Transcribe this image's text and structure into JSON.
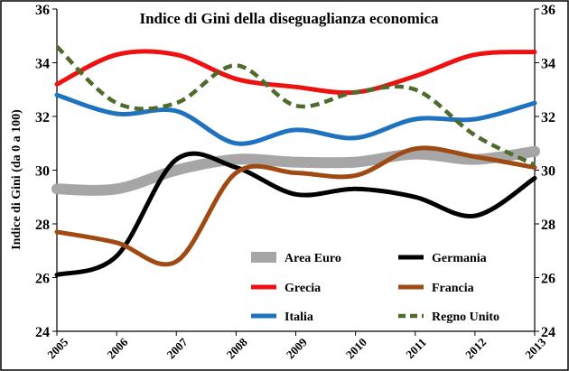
{
  "chart_data": {
    "type": "line",
    "title": "Indice di Gini della diseguaglianza economica",
    "xlabel": "",
    "ylabel": "Indice di Gini (da 0 a 100)",
    "x": [
      "2005",
      "2006",
      "2007",
      "2008",
      "2009",
      "2010",
      "2011",
      "2012",
      "2013"
    ],
    "ylim": [
      24,
      36
    ],
    "yticks": [
      "24",
      "26",
      "28",
      "30",
      "32",
      "34",
      "36"
    ],
    "grid": false,
    "secondary_axis": true,
    "legend_position": "bottom-right",
    "series": [
      {
        "name": "Area Euro",
        "color": "#a6a6a6",
        "style": "solid-thick",
        "values": [
          29.3,
          29.3,
          30.0,
          30.4,
          30.3,
          30.3,
          30.6,
          30.4,
          30.7
        ]
      },
      {
        "name": "Germania",
        "color": "#000000",
        "style": "solid",
        "values": [
          26.1,
          26.8,
          30.4,
          30.1,
          29.1,
          29.3,
          29.0,
          28.3,
          29.7
        ]
      },
      {
        "name": "Grecia",
        "color": "#ee1111",
        "style": "solid",
        "values": [
          33.2,
          34.3,
          34.3,
          33.4,
          33.1,
          32.9,
          33.5,
          34.3,
          34.4
        ]
      },
      {
        "name": "Francia",
        "color": "#9e4a12",
        "style": "solid",
        "values": [
          27.7,
          27.3,
          26.6,
          29.9,
          29.9,
          29.8,
          30.8,
          30.5,
          30.1
        ]
      },
      {
        "name": "Italia",
        "color": "#1f72c0",
        "style": "solid",
        "values": [
          32.8,
          32.1,
          32.2,
          31.0,
          31.5,
          31.2,
          31.9,
          31.9,
          32.5
        ]
      },
      {
        "name": "Regno Unito",
        "color": "#4e6b2c",
        "style": "dashed",
        "values": [
          34.6,
          32.5,
          32.5,
          33.9,
          32.4,
          32.9,
          33.0,
          31.3,
          30.2
        ]
      }
    ]
  }
}
